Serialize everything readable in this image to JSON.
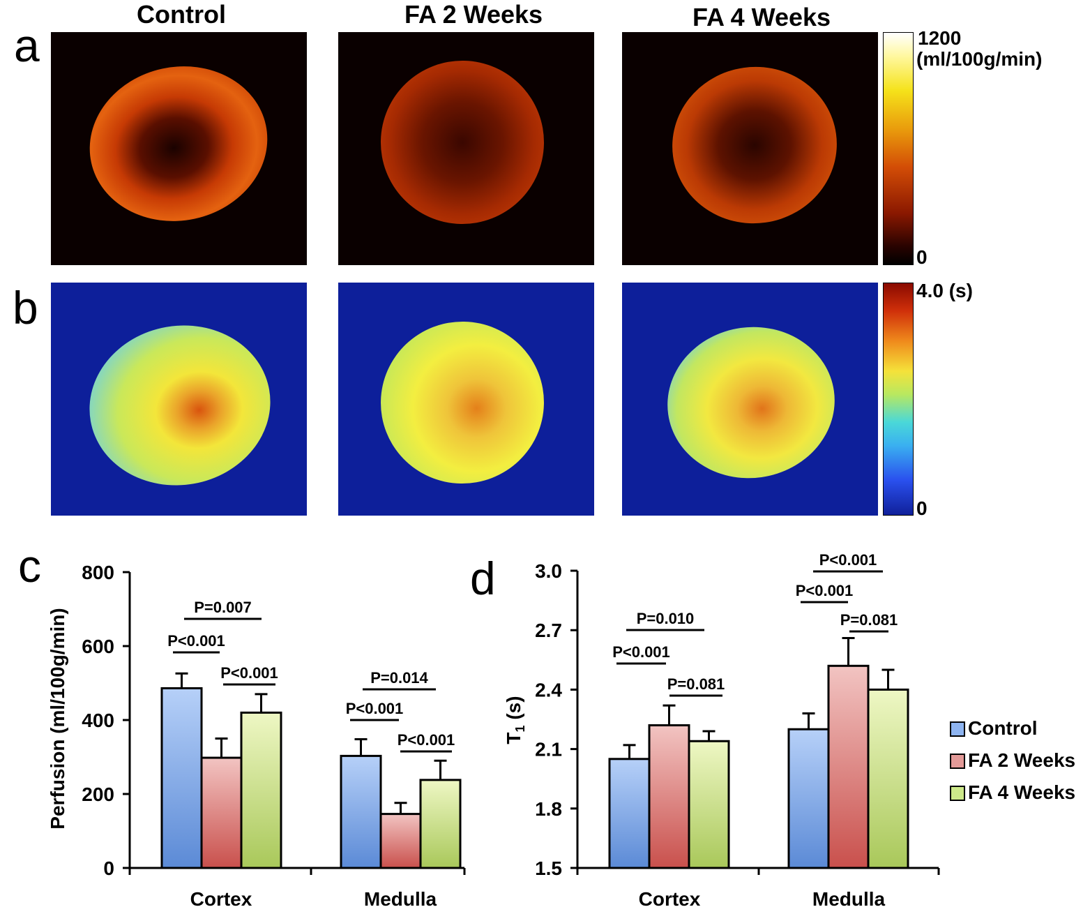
{
  "panels": {
    "a": "a",
    "b": "b",
    "c": "c",
    "d": "d"
  },
  "columns": [
    "Control",
    "FA 2 Weeks",
    "FA 4 Weeks"
  ],
  "colorbars": {
    "perfusion": {
      "max_label": "1200",
      "unit_label": "(ml/100g/min)",
      "min_label": "0"
    },
    "t1": {
      "max_label": "4.0 (s)",
      "min_label": "0"
    }
  },
  "legend": {
    "items": [
      {
        "label": "Control",
        "color": "#8eb4f0"
      },
      {
        "label": "FA 2 Weeks",
        "color": "#e39a98"
      },
      {
        "label": "FA 4 Weeks",
        "color": "#cde98a"
      }
    ]
  },
  "colors": {
    "control": "#8eb4f0",
    "fa2": "#e39a98",
    "fa4": "#cde98a"
  },
  "chart_data": [
    {
      "type": "bar",
      "panel": "c",
      "title": "",
      "xlabel": "",
      "ylabel": "Perfusion (ml/100g/min)",
      "ylim": [
        0,
        800
      ],
      "yticks": [
        "0",
        "200",
        "400",
        "600",
        "800"
      ],
      "categories": [
        "Cortex",
        "Medulla"
      ],
      "series": [
        {
          "name": "Control",
          "values": [
            486,
            303
          ],
          "errors": [
            40,
            45
          ]
        },
        {
          "name": "FA 2 Weeks",
          "values": [
            298,
            146
          ],
          "errors": [
            52,
            30
          ]
        },
        {
          "name": "FA 4 Weeks",
          "values": [
            420,
            238
          ],
          "errors": [
            50,
            52
          ]
        }
      ],
      "annotations": [
        "P=0.007",
        "P<0.001",
        "P<0.001",
        "P=0.014",
        "P<0.001",
        "P<0.001"
      ]
    },
    {
      "type": "bar",
      "panel": "d",
      "title": "",
      "xlabel": "",
      "ylabel": "T1 (s)",
      "ylabel_main": "T",
      "ylabel_sub": "1",
      "ylabel_unit": " (s)",
      "ylim": [
        1.5,
        3.0
      ],
      "yticks": [
        "1.5",
        "1.8",
        "2.1",
        "2.4",
        "2.7",
        "3.0"
      ],
      "categories": [
        "Cortex",
        "Medulla"
      ],
      "series": [
        {
          "name": "Control",
          "values": [
            2.05,
            2.2
          ],
          "errors": [
            0.07,
            0.08
          ]
        },
        {
          "name": "FA 2 Weeks",
          "values": [
            2.22,
            2.52
          ],
          "errors": [
            0.1,
            0.14
          ]
        },
        {
          "name": "FA 4 Weeks",
          "values": [
            2.14,
            2.4
          ],
          "errors": [
            0.05,
            0.1
          ]
        }
      ],
      "annotations": [
        "P=0.010",
        "P<0.001",
        "P=0.081",
        "P<0.001",
        "P<0.001",
        "P=0.081"
      ]
    }
  ]
}
